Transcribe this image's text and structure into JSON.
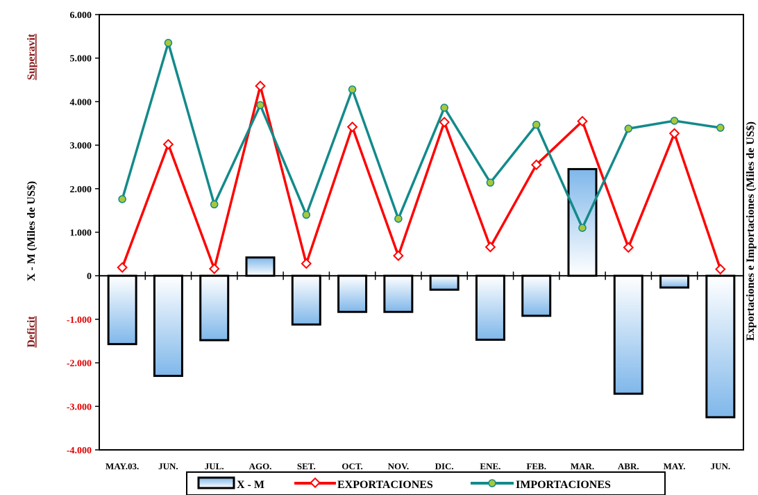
{
  "chart_data": {
    "type": "bar",
    "categories": [
      "MAY.03.",
      "JUN.",
      "JUL.",
      "AGO.",
      "SET.",
      "OCT.",
      "NOV.",
      "DIC.",
      "ENE.\n04",
      "FEB.",
      "MAR.",
      "ABR.",
      "MAY.",
      "JUN."
    ],
    "ylim": [
      -4000,
      6000
    ],
    "ytick_labels": [
      "-4.000",
      "-3.000",
      "-2.000",
      "-1.000",
      "0",
      "1.000",
      "2.000",
      "3.000",
      "4.000",
      "5.000",
      "6.000"
    ],
    "ylabel": "X - M (Miles de US$)",
    "ylabel_right": "Exportaciones e Importaciones (Miles de US$)",
    "annotation_top": "Superavit",
    "annotation_bottom": "Deficit",
    "grid": false,
    "legend_position": "bottom",
    "series": [
      {
        "name": "X - M",
        "kind": "bar",
        "color": "#a9d0f5",
        "values": [
          -1570,
          -2300,
          -1480,
          420,
          -1120,
          -830,
          -830,
          -320,
          -1470,
          -920,
          2450,
          -2710,
          -270,
          -3250
        ]
      },
      {
        "name": "EXPORTACIONES",
        "kind": "line",
        "color": "#ff0000",
        "values": [
          190,
          3020,
          160,
          4360,
          280,
          3420,
          460,
          3530,
          660,
          2550,
          3550,
          650,
          3270,
          150
        ]
      },
      {
        "name": "IMPORTACIONES",
        "kind": "line",
        "color": "#138a8a",
        "values": [
          1760,
          5350,
          1640,
          3920,
          1400,
          4280,
          1310,
          3860,
          2140,
          3470,
          1100,
          3380,
          3560,
          3400
        ]
      }
    ]
  }
}
